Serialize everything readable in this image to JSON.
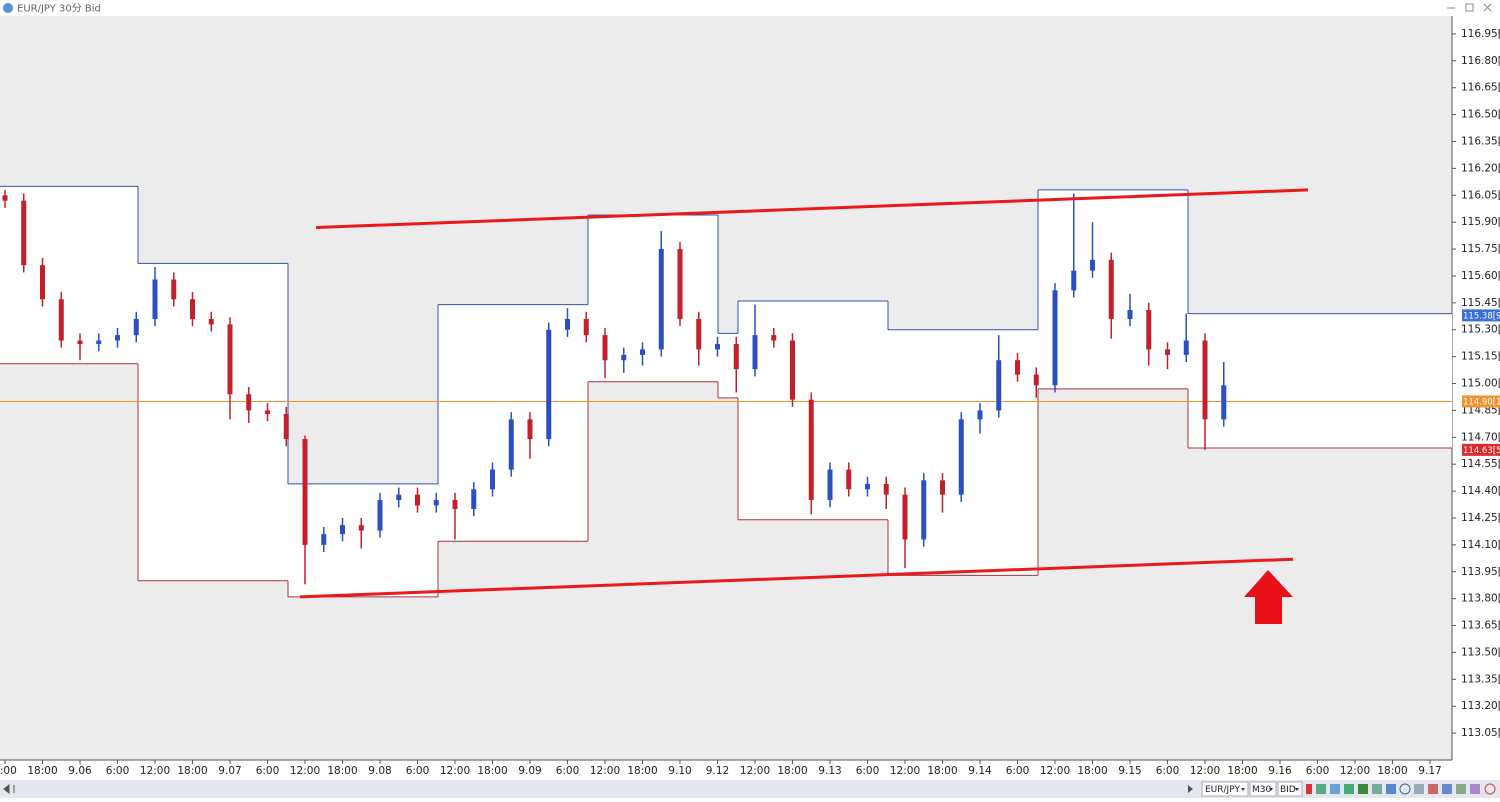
{
  "window_title": "EUR/JPY 30分 Bid",
  "chart_data": {
    "type": "candlestick",
    "up_color": "#2a4fc4",
    "down_color": "#c4202c",
    "open": [
      116.05,
      116.02,
      115.66,
      115.47,
      115.24,
      115.22,
      115.24,
      115.27,
      115.36,
      115.58,
      115.47,
      115.36,
      115.33,
      114.94,
      114.85,
      114.83,
      114.69,
      114.1,
      114.16,
      114.21,
      114.18,
      114.35,
      114.38,
      114.32,
      114.35,
      114.3,
      114.41,
      114.52,
      114.8,
      114.69,
      115.3,
      115.36,
      115.27,
      115.13,
      115.16,
      115.19,
      115.75,
      115.36,
      115.19,
      115.22,
      115.08,
      115.27,
      115.24,
      114.91,
      114.35,
      114.52,
      114.41,
      114.44,
      114.38,
      114.13,
      114.46,
      114.38,
      114.8,
      114.85,
      115.13,
      115.05,
      114.99,
      115.52,
      115.63,
      115.69,
      115.36,
      115.41,
      115.19,
      115.16,
      115.24,
      114.8
    ],
    "high": [
      116.08,
      116.06,
      115.7,
      115.51,
      115.28,
      115.28,
      115.31,
      115.4,
      115.65,
      115.62,
      115.51,
      115.4,
      115.37,
      114.98,
      114.89,
      114.87,
      114.71,
      114.2,
      114.25,
      114.25,
      114.39,
      114.42,
      114.42,
      114.39,
      114.39,
      114.45,
      114.56,
      114.84,
      114.84,
      115.34,
      115.42,
      115.4,
      115.31,
      115.2,
      115.23,
      115.85,
      115.79,
      115.4,
      115.26,
      115.26,
      115.44,
      115.31,
      115.28,
      114.95,
      114.56,
      114.56,
      114.48,
      114.48,
      114.42,
      114.5,
      114.5,
      114.84,
      114.89,
      115.27,
      115.17,
      115.09,
      115.56,
      116.06,
      115.9,
      115.73,
      115.5,
      115.45,
      115.23,
      115.39,
      115.28,
      115.12
    ],
    "low": [
      115.98,
      115.62,
      115.43,
      115.2,
      115.13,
      115.18,
      115.2,
      115.23,
      115.32,
      115.43,
      115.32,
      115.29,
      114.8,
      114.78,
      114.79,
      114.65,
      113.88,
      114.06,
      114.12,
      114.08,
      114.14,
      114.31,
      114.28,
      114.28,
      114.13,
      114.26,
      114.37,
      114.48,
      114.58,
      114.65,
      115.26,
      115.23,
      115.03,
      115.06,
      115.1,
      115.15,
      115.32,
      115.1,
      115.15,
      114.95,
      115.04,
      115.2,
      114.87,
      114.27,
      114.31,
      114.37,
      114.37,
      114.3,
      113.97,
      114.09,
      114.28,
      114.34,
      114.72,
      114.81,
      115.01,
      114.92,
      114.95,
      115.48,
      115.59,
      115.25,
      115.32,
      115.1,
      115.08,
      115.12,
      114.63,
      114.76
    ],
    "close": [
      116.02,
      115.66,
      115.47,
      115.24,
      115.22,
      115.24,
      115.27,
      115.36,
      115.58,
      115.47,
      115.36,
      115.33,
      114.94,
      114.85,
      114.83,
      114.69,
      114.1,
      114.16,
      114.21,
      114.18,
      114.35,
      114.38,
      114.32,
      114.35,
      114.3,
      114.41,
      114.52,
      114.8,
      114.69,
      115.3,
      115.36,
      115.27,
      115.13,
      115.16,
      115.19,
      115.75,
      115.36,
      115.19,
      115.22,
      115.08,
      115.27,
      115.24,
      114.91,
      114.35,
      114.52,
      114.41,
      114.44,
      114.38,
      114.13,
      114.46,
      114.38,
      114.8,
      114.85,
      115.13,
      115.05,
      114.99,
      115.52,
      115.63,
      115.69,
      115.36,
      115.41,
      115.19,
      115.16,
      115.24,
      114.8,
      114.99
    ],
    "ylim": [
      112.9,
      117.05
    ],
    "yticks": [
      {
        "value": 116.95,
        "label": "116.95[0"
      },
      {
        "value": 116.8,
        "label": "116.80[0"
      },
      {
        "value": 116.65,
        "label": "116.65[0"
      },
      {
        "value": 116.5,
        "label": "116.50[0"
      },
      {
        "value": 116.35,
        "label": "116.35[0"
      },
      {
        "value": 116.2,
        "label": "116.20[0"
      },
      {
        "value": 116.05,
        "label": "116.05[0"
      },
      {
        "value": 115.9,
        "label": "115.90[0"
      },
      {
        "value": 115.75,
        "label": "115.75[0"
      },
      {
        "value": 115.6,
        "label": "115.60[0"
      },
      {
        "value": 115.45,
        "label": "115.45[0"
      },
      {
        "value": 115.3,
        "label": "115.30[0"
      },
      {
        "value": 115.15,
        "label": "115.15[0"
      },
      {
        "value": 115.0,
        "label": "115.00[0"
      },
      {
        "value": 114.85,
        "label": "114.85[0"
      },
      {
        "value": 114.7,
        "label": "114.70[0"
      },
      {
        "value": 114.55,
        "label": "114.55[0"
      },
      {
        "value": 114.4,
        "label": "114.40[0"
      },
      {
        "value": 114.25,
        "label": "114.25[0"
      },
      {
        "value": 114.1,
        "label": "114.10[0"
      },
      {
        "value": 113.95,
        "label": "113.95[0"
      },
      {
        "value": 113.8,
        "label": "113.80[0"
      },
      {
        "value": 113.65,
        "label": "113.65[0"
      },
      {
        "value": 113.5,
        "label": "113.50[0"
      },
      {
        "value": 113.35,
        "label": "113.35[0"
      },
      {
        "value": 113.2,
        "label": "113.20[0"
      },
      {
        "value": 113.05,
        "label": "113.05[0"
      }
    ],
    "xlabels": [
      "2:00",
      "18:00",
      "9.06",
      "6:00",
      "12:00",
      "18:00",
      "9.07",
      "6:00",
      "12:00",
      "18:00",
      "9.08",
      "6:00",
      "12:00",
      "18:00",
      "9.09",
      "6:00",
      "12:00",
      "18:00",
      "9.10",
      "9.12",
      "12:00",
      "18:00",
      "9.13",
      "6:00",
      "12:00",
      "18:00",
      "9.14",
      "6:00",
      "12:00",
      "18:00",
      "9.15",
      "6:00",
      "12:00",
      "18:00",
      "9.16",
      "6:00",
      "12:00",
      "18:00",
      "9.17"
    ],
    "daily_ranges": [
      {
        "high": 116.1,
        "low": 115.11
      },
      {
        "high": 115.67,
        "low": 113.9
      },
      {
        "high": 114.44,
        "low": 113.81
      },
      {
        "high": 115.44,
        "low": 114.12
      },
      {
        "high": 115.94,
        "low": 115.01
      },
      {
        "high": 115.28,
        "low": 114.92
      },
      {
        "high": 115.46,
        "low": 114.24
      },
      {
        "high": 115.3,
        "low": 113.93
      },
      {
        "high": 116.08,
        "low": 114.97
      },
      {
        "high": 115.39,
        "low": 114.64
      }
    ],
    "range_high_color": "#3a4fa8",
    "range_low_color": "#a8343a",
    "trendlines": [
      {
        "start": 115.87,
        "end": 116.08
      },
      {
        "start": 113.81,
        "end": 114.02
      }
    ],
    "trendline_color": "#e8191f",
    "price_tags": [
      {
        "value": 115.38,
        "label": "115.38[9]",
        "color": "#3b6fd8"
      },
      {
        "value": 114.9,
        "label": "114.90[1]",
        "color": "#f0922e"
      },
      {
        "value": 114.63,
        "label": "114.63[5]",
        "color": "#e02a2a"
      }
    ]
  },
  "toolbar": {
    "symbol": "EUR/JPY",
    "timeframe": "M30",
    "side": "BID"
  }
}
